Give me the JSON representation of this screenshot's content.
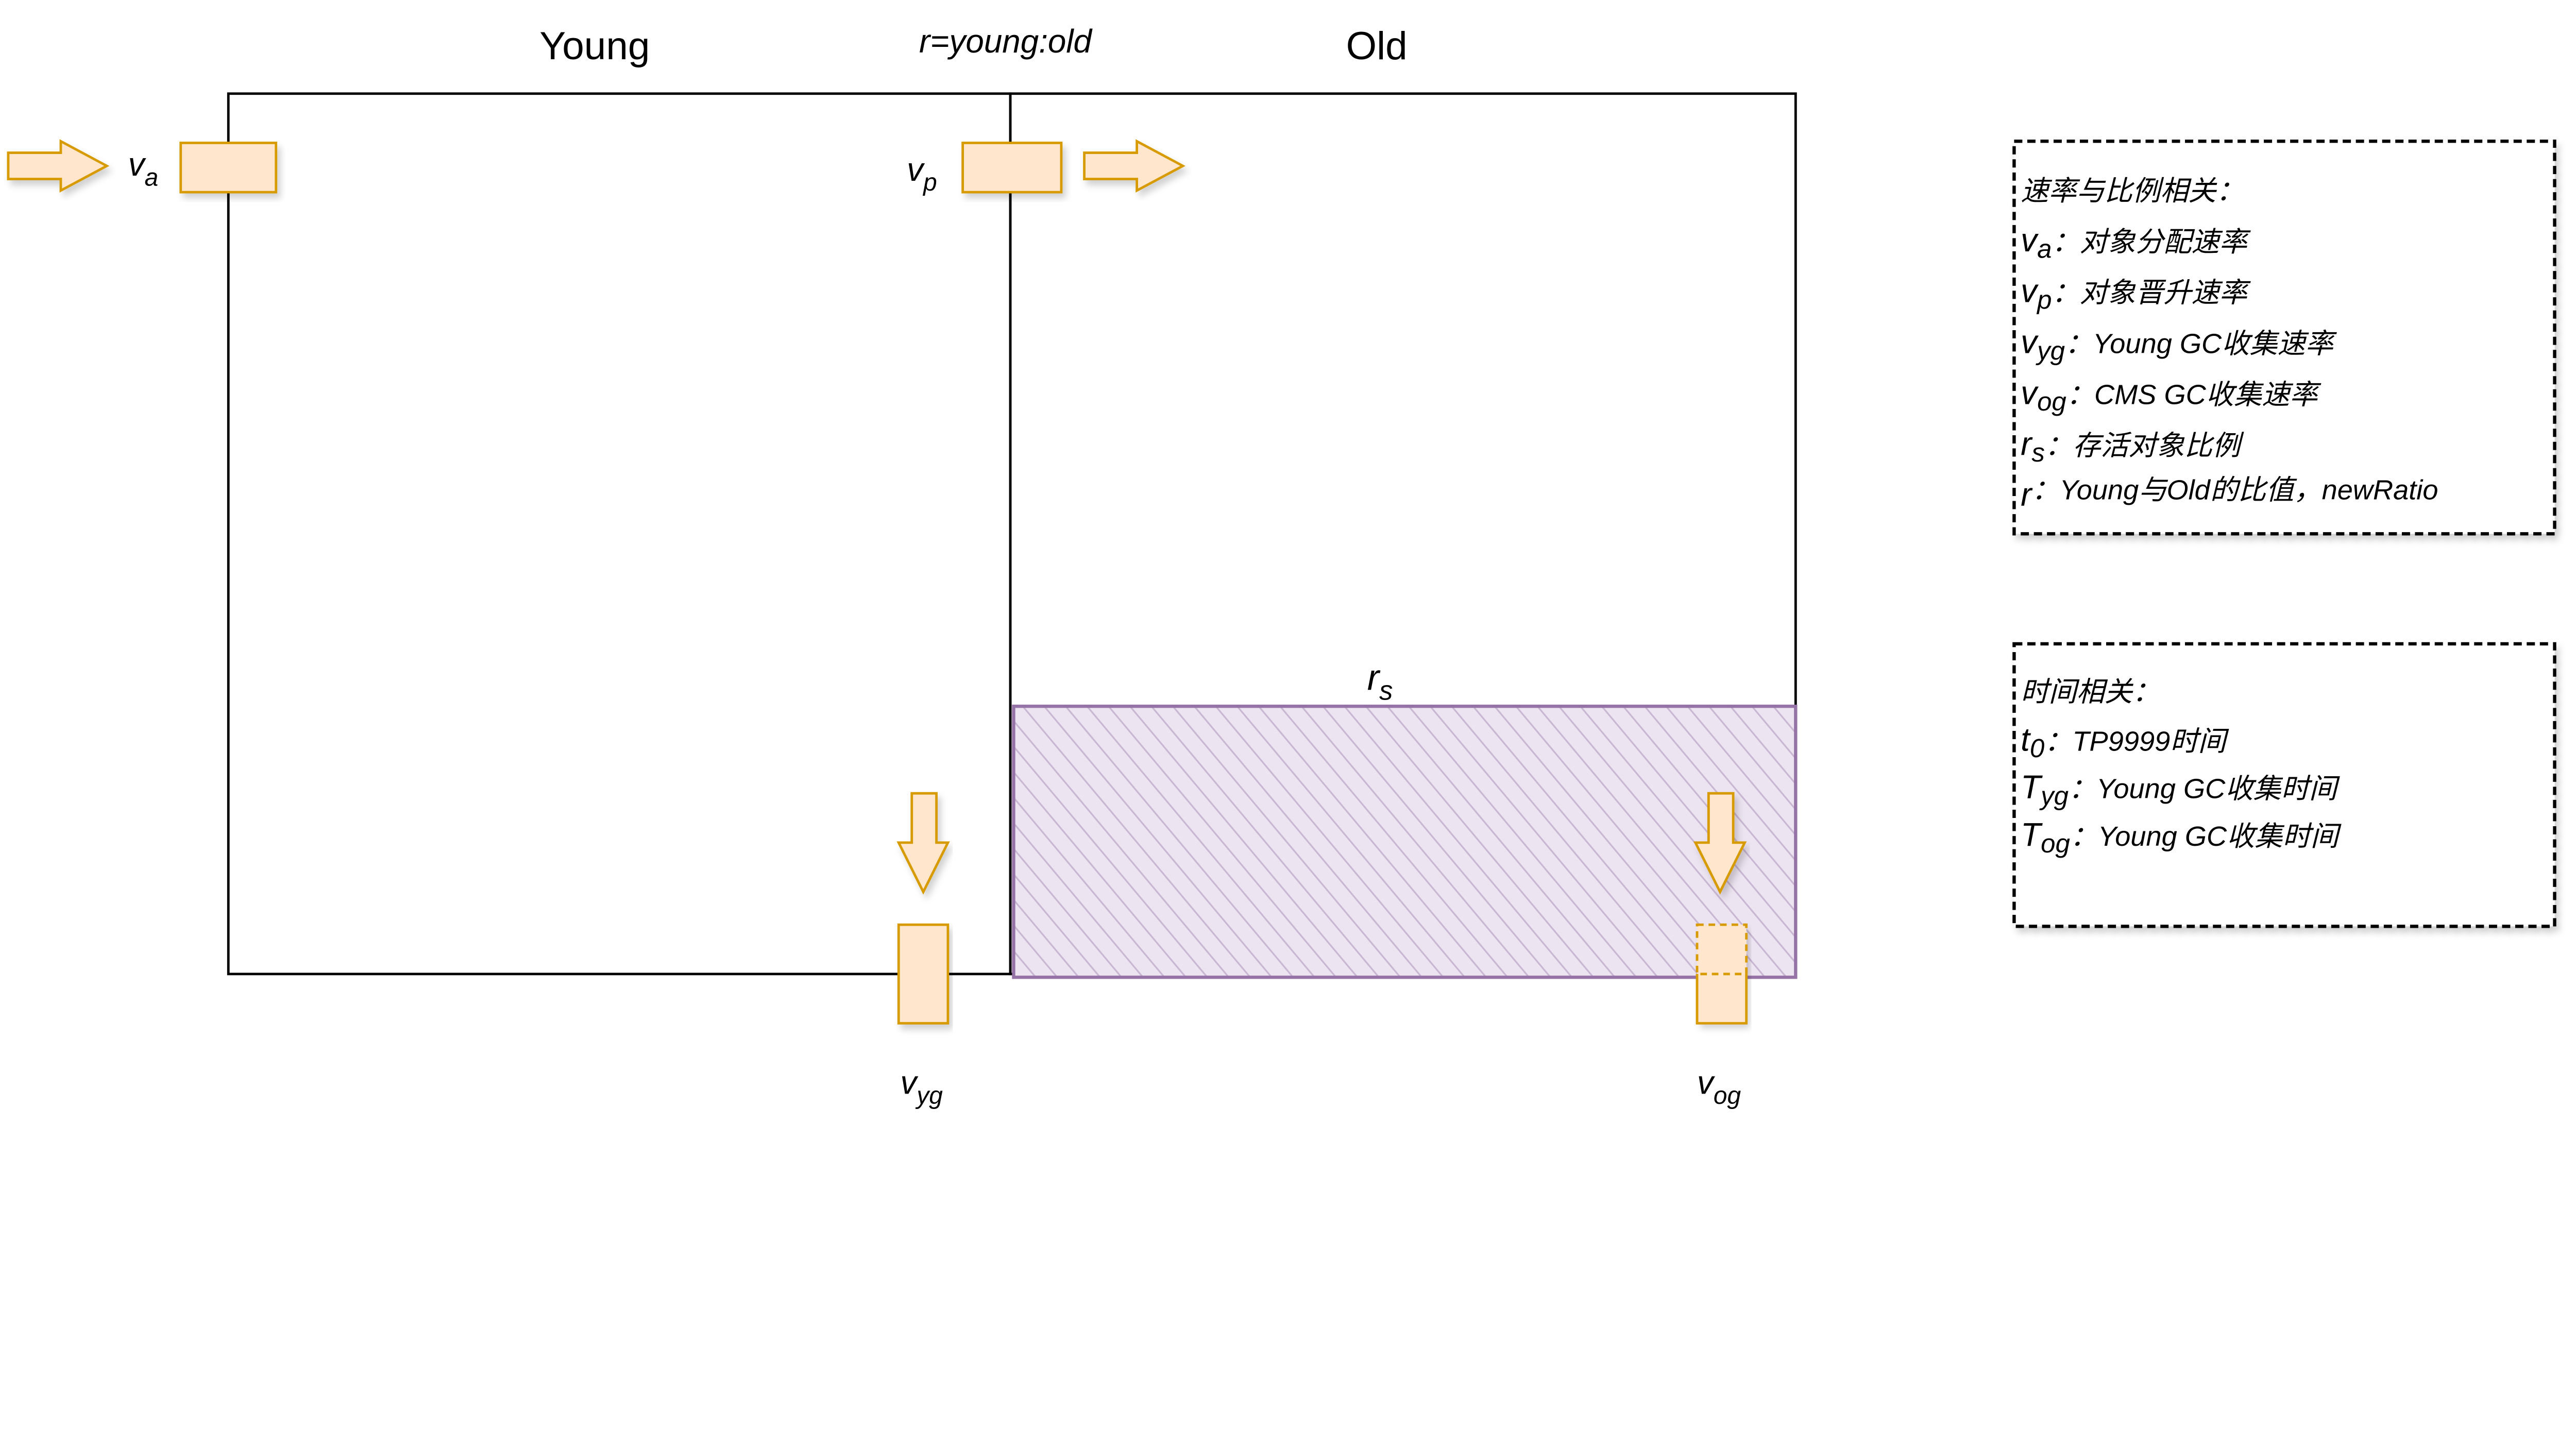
{
  "titles": {
    "young": "Young",
    "ratio": "r=young:old",
    "old": "Old"
  },
  "labels": {
    "va": {
      "base": "v",
      "sub": "a"
    },
    "vp": {
      "base": "v",
      "sub": "p"
    },
    "vyg": {
      "base": "v",
      "sub": "yg"
    },
    "vog": {
      "base": "v",
      "sub": "og"
    },
    "rs": {
      "base": "r",
      "sub": "s"
    }
  },
  "legend_rates": {
    "heading": "速率与比例相关：",
    "items": [
      {
        "base": "v",
        "sub": "a",
        "text": "：对象分配速率"
      },
      {
        "base": "v",
        "sub": "p",
        "text": "：对象晋升速率"
      },
      {
        "base": "v",
        "sub": "yg",
        "text": "：Young GC收集速率"
      },
      {
        "base": "v",
        "sub": "og",
        "text": "：CMS GC收集速率"
      },
      {
        "base": "r",
        "sub": "s",
        "text": "：存活对象比例"
      },
      {
        "base": "r",
        "sub": "",
        "text": "：Young与Old的比值，newRatio"
      }
    ]
  },
  "legend_time": {
    "heading": "时间相关：",
    "items": [
      {
        "base": "t",
        "sub": "0",
        "text": "：TP9999时间"
      },
      {
        "base": "T",
        "sub": "yg",
        "text": "：Young GC收集时间"
      },
      {
        "base": "T",
        "sub": "og",
        "text": "：Young GC收集时间"
      }
    ]
  },
  "colors": {
    "arrow_fill": "#ffe6cc",
    "arrow_stroke": "#d79b00",
    "survivor_fill": "#e1d5e7",
    "survivor_stroke": "#9673a6"
  }
}
